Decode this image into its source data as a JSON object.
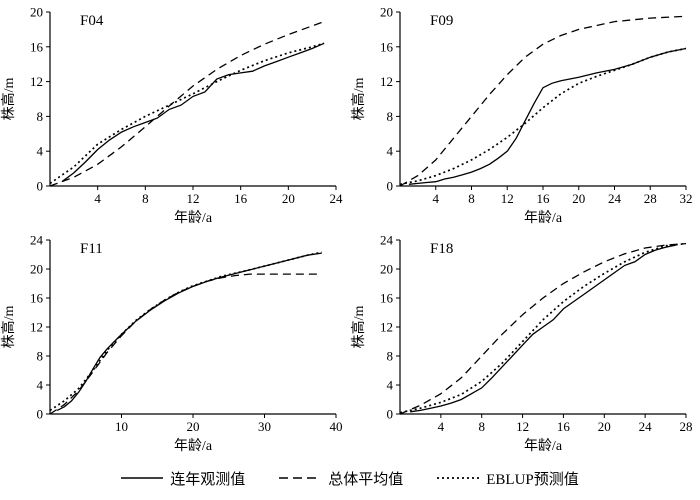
{
  "legend": {
    "items": [
      {
        "label": "连年观测值",
        "style": "solid"
      },
      {
        "label": "总体平均值",
        "style": "dashed"
      },
      {
        "label": "EBLUP预测值",
        "style": "dotted"
      }
    ]
  },
  "chart_data": [
    {
      "type": "line",
      "title": "F04",
      "xlabel": "年龄/a",
      "ylabel": "株高/m",
      "xlim": [
        0,
        24
      ],
      "ylim": [
        0,
        20
      ],
      "xticks": [
        4,
        8,
        12,
        16,
        20,
        24
      ],
      "yticks": [
        0,
        4,
        8,
        12,
        16,
        20
      ],
      "grid": false,
      "series": [
        {
          "name": "连年观测值",
          "style": "solid",
          "x": [
            1,
            2,
            3,
            4,
            5,
            6,
            7,
            8,
            9,
            10,
            11,
            12,
            13,
            14,
            15,
            16,
            17,
            18,
            19,
            20,
            21,
            22,
            23
          ],
          "y": [
            0.5,
            1.5,
            2.8,
            4.2,
            5.3,
            6.2,
            6.8,
            7.3,
            7.8,
            8.8,
            9.3,
            10.3,
            10.8,
            12.3,
            12.8,
            13.0,
            13.2,
            13.8,
            14.3,
            14.8,
            15.3,
            15.8,
            16.4
          ]
        },
        {
          "name": "总体平均值",
          "style": "dashed",
          "x": [
            0,
            2,
            4,
            6,
            8,
            10,
            12,
            14,
            16,
            18,
            20,
            22,
            23
          ],
          "y": [
            0,
            1.0,
            2.5,
            4.5,
            6.8,
            9.2,
            11.5,
            13.4,
            15.0,
            16.3,
            17.4,
            18.4,
            18.9
          ]
        },
        {
          "name": "EBLUP预测值",
          "style": "dotted",
          "x": [
            0,
            2,
            4,
            6,
            8,
            10,
            12,
            14,
            16,
            18,
            20,
            22,
            23
          ],
          "y": [
            0.3,
            2.2,
            4.8,
            6.5,
            8.0,
            9.3,
            10.6,
            12.0,
            13.3,
            14.4,
            15.3,
            16.0,
            16.4
          ]
        }
      ]
    },
    {
      "type": "line",
      "title": "F09",
      "xlabel": "年龄/a",
      "ylabel": "株高/m",
      "xlim": [
        0,
        32
      ],
      "ylim": [
        0,
        20
      ],
      "xticks": [
        4,
        8,
        12,
        16,
        20,
        24,
        28,
        32
      ],
      "yticks": [
        0,
        4,
        8,
        12,
        16,
        20
      ],
      "grid": false,
      "series": [
        {
          "name": "连年观测值",
          "style": "solid",
          "x": [
            1,
            2,
            3,
            4,
            5,
            6,
            7,
            8,
            9,
            10,
            11,
            12,
            13,
            14,
            15,
            16,
            17,
            18,
            20,
            22,
            24,
            26,
            28,
            30,
            32
          ],
          "y": [
            0.2,
            0.3,
            0.4,
            0.5,
            0.8,
            1.0,
            1.3,
            1.6,
            2.0,
            2.5,
            3.2,
            4.0,
            5.5,
            7.5,
            9.5,
            11.3,
            11.8,
            12.1,
            12.5,
            13.0,
            13.4,
            14.0,
            14.8,
            15.4,
            15.8
          ]
        },
        {
          "name": "总体平均值",
          "style": "dashed",
          "x": [
            0,
            2,
            4,
            6,
            8,
            10,
            12,
            14,
            16,
            18,
            20,
            24,
            28,
            32
          ],
          "y": [
            0,
            1.2,
            3.0,
            5.5,
            8.0,
            10.5,
            12.8,
            14.8,
            16.3,
            17.3,
            18.0,
            18.9,
            19.3,
            19.5
          ]
        },
        {
          "name": "EBLUP预测值",
          "style": "dotted",
          "x": [
            0,
            2,
            4,
            6,
            8,
            10,
            12,
            14,
            16,
            18,
            20,
            22,
            24,
            26,
            28,
            30,
            32
          ],
          "y": [
            0.2,
            0.6,
            1.2,
            2.0,
            3.0,
            4.2,
            5.6,
            7.2,
            9.0,
            10.6,
            11.8,
            12.6,
            13.3,
            14.0,
            14.8,
            15.4,
            15.8
          ]
        }
      ]
    },
    {
      "type": "line",
      "title": "F11",
      "xlabel": "年龄/a",
      "ylabel": "株高/m",
      "xlim": [
        0,
        40
      ],
      "ylim": [
        0,
        24
      ],
      "xticks": [
        10,
        20,
        30,
        40
      ],
      "yticks": [
        0,
        4,
        8,
        12,
        16,
        20,
        24
      ],
      "grid": false,
      "series": [
        {
          "name": "连年观测值",
          "style": "solid",
          "x": [
            1,
            2,
            3,
            4,
            5,
            6,
            7,
            8,
            9,
            10,
            12,
            14,
            16,
            18,
            20,
            22,
            24,
            26,
            28,
            30,
            32,
            34,
            36,
            38
          ],
          "y": [
            0.5,
            1.0,
            1.8,
            3.0,
            4.5,
            6.2,
            7.8,
            9.0,
            10.0,
            11.0,
            12.8,
            14.3,
            15.6,
            16.7,
            17.6,
            18.3,
            18.9,
            19.4,
            19.9,
            20.4,
            20.9,
            21.4,
            21.9,
            22.2
          ]
        },
        {
          "name": "总体平均值",
          "style": "dashed",
          "x": [
            0,
            2,
            4,
            6,
            8,
            10,
            12,
            14,
            16,
            18,
            20,
            22,
            24,
            26,
            28,
            32,
            36,
            38
          ],
          "y": [
            0,
            1.3,
            3.2,
            5.8,
            8.5,
            10.8,
            12.8,
            14.4,
            15.7,
            16.8,
            17.6,
            18.3,
            18.8,
            19.1,
            19.3,
            19.3,
            19.3,
            19.3
          ]
        },
        {
          "name": "EBLUP预测值",
          "style": "dotted",
          "x": [
            0,
            2,
            4,
            6,
            8,
            10,
            12,
            14,
            16,
            18,
            20,
            24,
            28,
            32,
            36,
            38
          ],
          "y": [
            0.5,
            1.8,
            3.5,
            6.0,
            8.8,
            11.0,
            12.9,
            14.4,
            15.7,
            16.8,
            17.7,
            19.0,
            19.9,
            20.9,
            21.9,
            22.3
          ]
        }
      ]
    },
    {
      "type": "line",
      "title": "F18",
      "xlabel": "年龄/a",
      "ylabel": "株高/m",
      "xlim": [
        0,
        28
      ],
      "ylim": [
        0,
        24
      ],
      "xticks": [
        4,
        8,
        12,
        16,
        20,
        24,
        28
      ],
      "yticks": [
        0,
        4,
        8,
        12,
        16,
        20,
        24
      ],
      "grid": false,
      "series": [
        {
          "name": "连年观测值",
          "style": "solid",
          "x": [
            1,
            2,
            3,
            4,
            5,
            6,
            7,
            8,
            9,
            10,
            11,
            12,
            13,
            14,
            15,
            16,
            17,
            18,
            19,
            20,
            21,
            22,
            23,
            24,
            25,
            26,
            27
          ],
          "y": [
            0.3,
            0.5,
            0.8,
            1.1,
            1.5,
            2.0,
            2.8,
            3.6,
            5.0,
            6.5,
            8.0,
            9.5,
            11.0,
            12.0,
            13.0,
            14.5,
            15.5,
            16.5,
            17.5,
            18.5,
            19.5,
            20.5,
            21.0,
            22.0,
            22.6,
            23.0,
            23.3
          ]
        },
        {
          "name": "总体平均值",
          "style": "dashed",
          "x": [
            0,
            2,
            4,
            6,
            8,
            10,
            12,
            14,
            16,
            18,
            20,
            22,
            24,
            26,
            28
          ],
          "y": [
            0,
            1.2,
            2.8,
            5.0,
            8.0,
            11.0,
            13.7,
            16.0,
            18.0,
            19.6,
            21.0,
            22.1,
            22.9,
            23.3,
            23.5
          ]
        },
        {
          "name": "EBLUP预测值",
          "style": "dotted",
          "x": [
            0,
            2,
            4,
            6,
            8,
            10,
            12,
            14,
            16,
            18,
            20,
            22,
            24,
            26,
            28
          ],
          "y": [
            0.2,
            0.8,
            1.6,
            2.7,
            4.5,
            7.0,
            10.0,
            13.0,
            15.5,
            17.6,
            19.4,
            21.0,
            22.3,
            23.2,
            23.5
          ]
        }
      ]
    }
  ],
  "colors": {
    "line": "#000000",
    "background": "#ffffff"
  }
}
